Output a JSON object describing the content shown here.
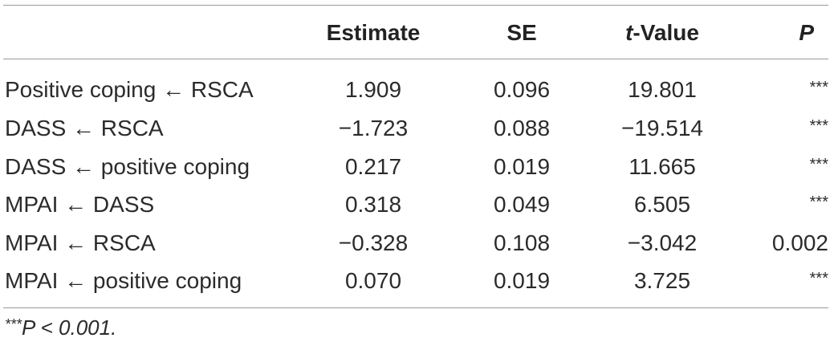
{
  "table": {
    "headers": {
      "label": "",
      "estimate": "Estimate",
      "se": "SE",
      "t_value_prefix": "t",
      "t_value_suffix": "-Value",
      "p": "P"
    },
    "rows": [
      {
        "path": "Positive coping ← RSCA",
        "estimate": "1.909",
        "se": "0.096",
        "t_value": "19.801",
        "p": "***"
      },
      {
        "path": "DASS ← RSCA",
        "estimate": "−1.723",
        "se": "0.088",
        "t_value": "−19.514",
        "p": "***"
      },
      {
        "path": "DASS ← positive coping",
        "estimate": "0.217",
        "se": "0.019",
        "t_value": "11.665",
        "p": "***"
      },
      {
        "path": "MPAI ← DASS",
        "estimate": "0.318",
        "se": "0.049",
        "t_value": "6.505",
        "p": "***"
      },
      {
        "path": "MPAI ← RSCA",
        "estimate": "−0.328",
        "se": "0.108",
        "t_value": "−3.042",
        "p": "0.002"
      },
      {
        "path": "MPAI ← positive coping",
        "estimate": "0.070",
        "se": "0.019",
        "t_value": "3.725",
        "p": "***"
      }
    ]
  },
  "footnote": {
    "stars": "***",
    "text": "P < 0.001."
  }
}
